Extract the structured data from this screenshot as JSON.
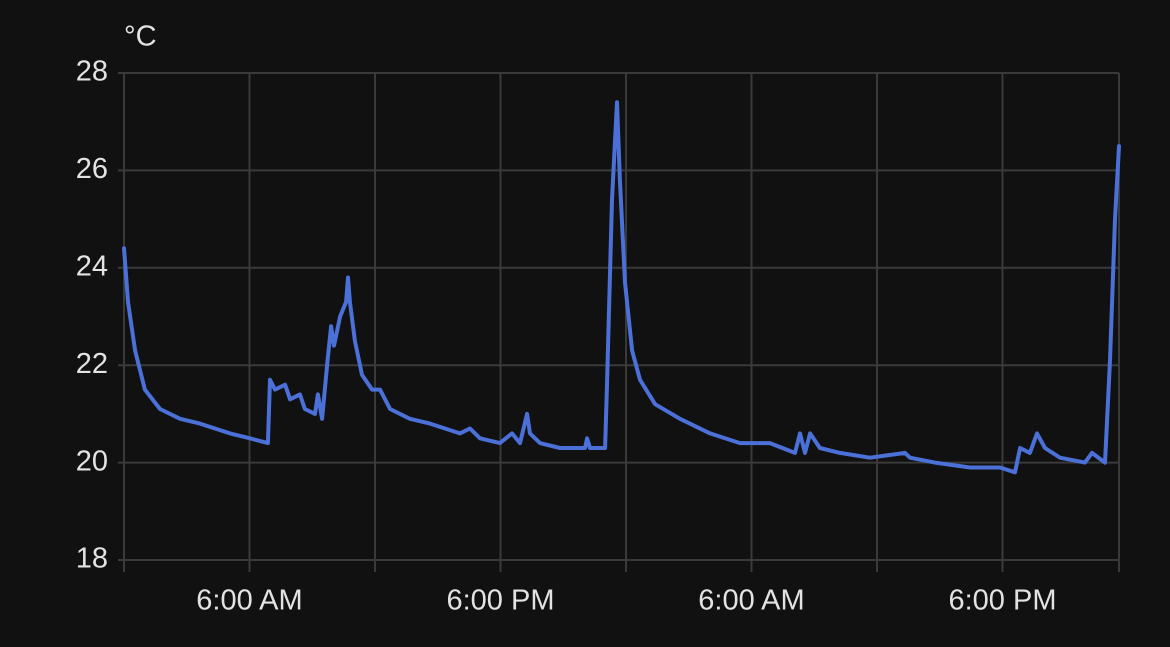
{
  "chart_data": {
    "type": "line",
    "y_axis_label": "°C",
    "xlim": [
      0,
      47.57
    ],
    "xticks": [
      {
        "value": 6,
        "label": "6:00 AM"
      },
      {
        "value": 18,
        "label": "6:00 PM"
      },
      {
        "value": 30,
        "label": "6:00 AM"
      },
      {
        "value": 42,
        "label": "6:00 PM"
      }
    ],
    "x_minor_grid": [
      12,
      24,
      36
    ],
    "ylim": [
      18,
      28
    ],
    "yticks": [
      18,
      20,
      22,
      24,
      26,
      28
    ],
    "grid": true,
    "series": [
      {
        "color": "#4b70d8",
        "x": [
          0,
          0.19,
          0.53,
          1.0,
          1.72,
          2.68,
          3.63,
          5.07,
          6.02,
          6.88,
          6.98,
          7.22,
          7.7,
          7.94,
          8.41,
          8.65,
          9.13,
          9.27,
          9.47,
          9.71,
          9.9,
          10.04,
          10.33,
          10.62,
          10.71,
          10.8,
          11.04,
          11.38,
          11.86,
          12.24,
          12.72,
          13.67,
          14.63,
          16.06,
          16.54,
          17.02,
          17.97,
          18.55,
          18.93,
          19.27,
          19.41,
          19.89,
          20.84,
          22.04,
          22.14,
          22.28,
          23.0,
          23.09,
          23.33,
          23.57,
          23.71,
          23.95,
          24.29,
          24.67,
          25.39,
          26.58,
          28.02,
          29.45,
          30.88,
          32.08,
          32.32,
          32.56,
          32.8,
          33.27,
          34.23,
          35.66,
          37.34,
          37.58,
          38.77,
          40.45,
          41.88,
          42.6,
          42.84,
          43.31,
          43.65,
          44.03,
          44.75,
          45.94,
          46.28,
          46.9,
          47.14,
          47.38,
          47.57
        ],
        "values": [
          24.4,
          23.3,
          22.3,
          21.5,
          21.1,
          20.9,
          20.8,
          20.6,
          20.5,
          20.4,
          21.7,
          21.5,
          21.6,
          21.3,
          21.4,
          21.1,
          21.0,
          21.4,
          20.9,
          22.0,
          22.8,
          22.4,
          23.0,
          23.3,
          23.8,
          23.3,
          22.5,
          21.8,
          21.5,
          21.5,
          21.1,
          20.9,
          20.8,
          20.6,
          20.7,
          20.5,
          20.4,
          20.6,
          20.4,
          21.0,
          20.6,
          20.4,
          20.3,
          20.3,
          20.5,
          20.3,
          20.3,
          21.6,
          25.4,
          27.4,
          25.8,
          23.7,
          22.3,
          21.7,
          21.2,
          20.9,
          20.6,
          20.4,
          20.4,
          20.2,
          20.6,
          20.2,
          20.6,
          20.3,
          20.2,
          20.1,
          20.2,
          20.1,
          20.0,
          19.9,
          19.9,
          19.8,
          20.3,
          20.2,
          20.6,
          20.3,
          20.1,
          20.0,
          20.2,
          20.0,
          22.1,
          25.0,
          26.5
        ]
      }
    ]
  }
}
